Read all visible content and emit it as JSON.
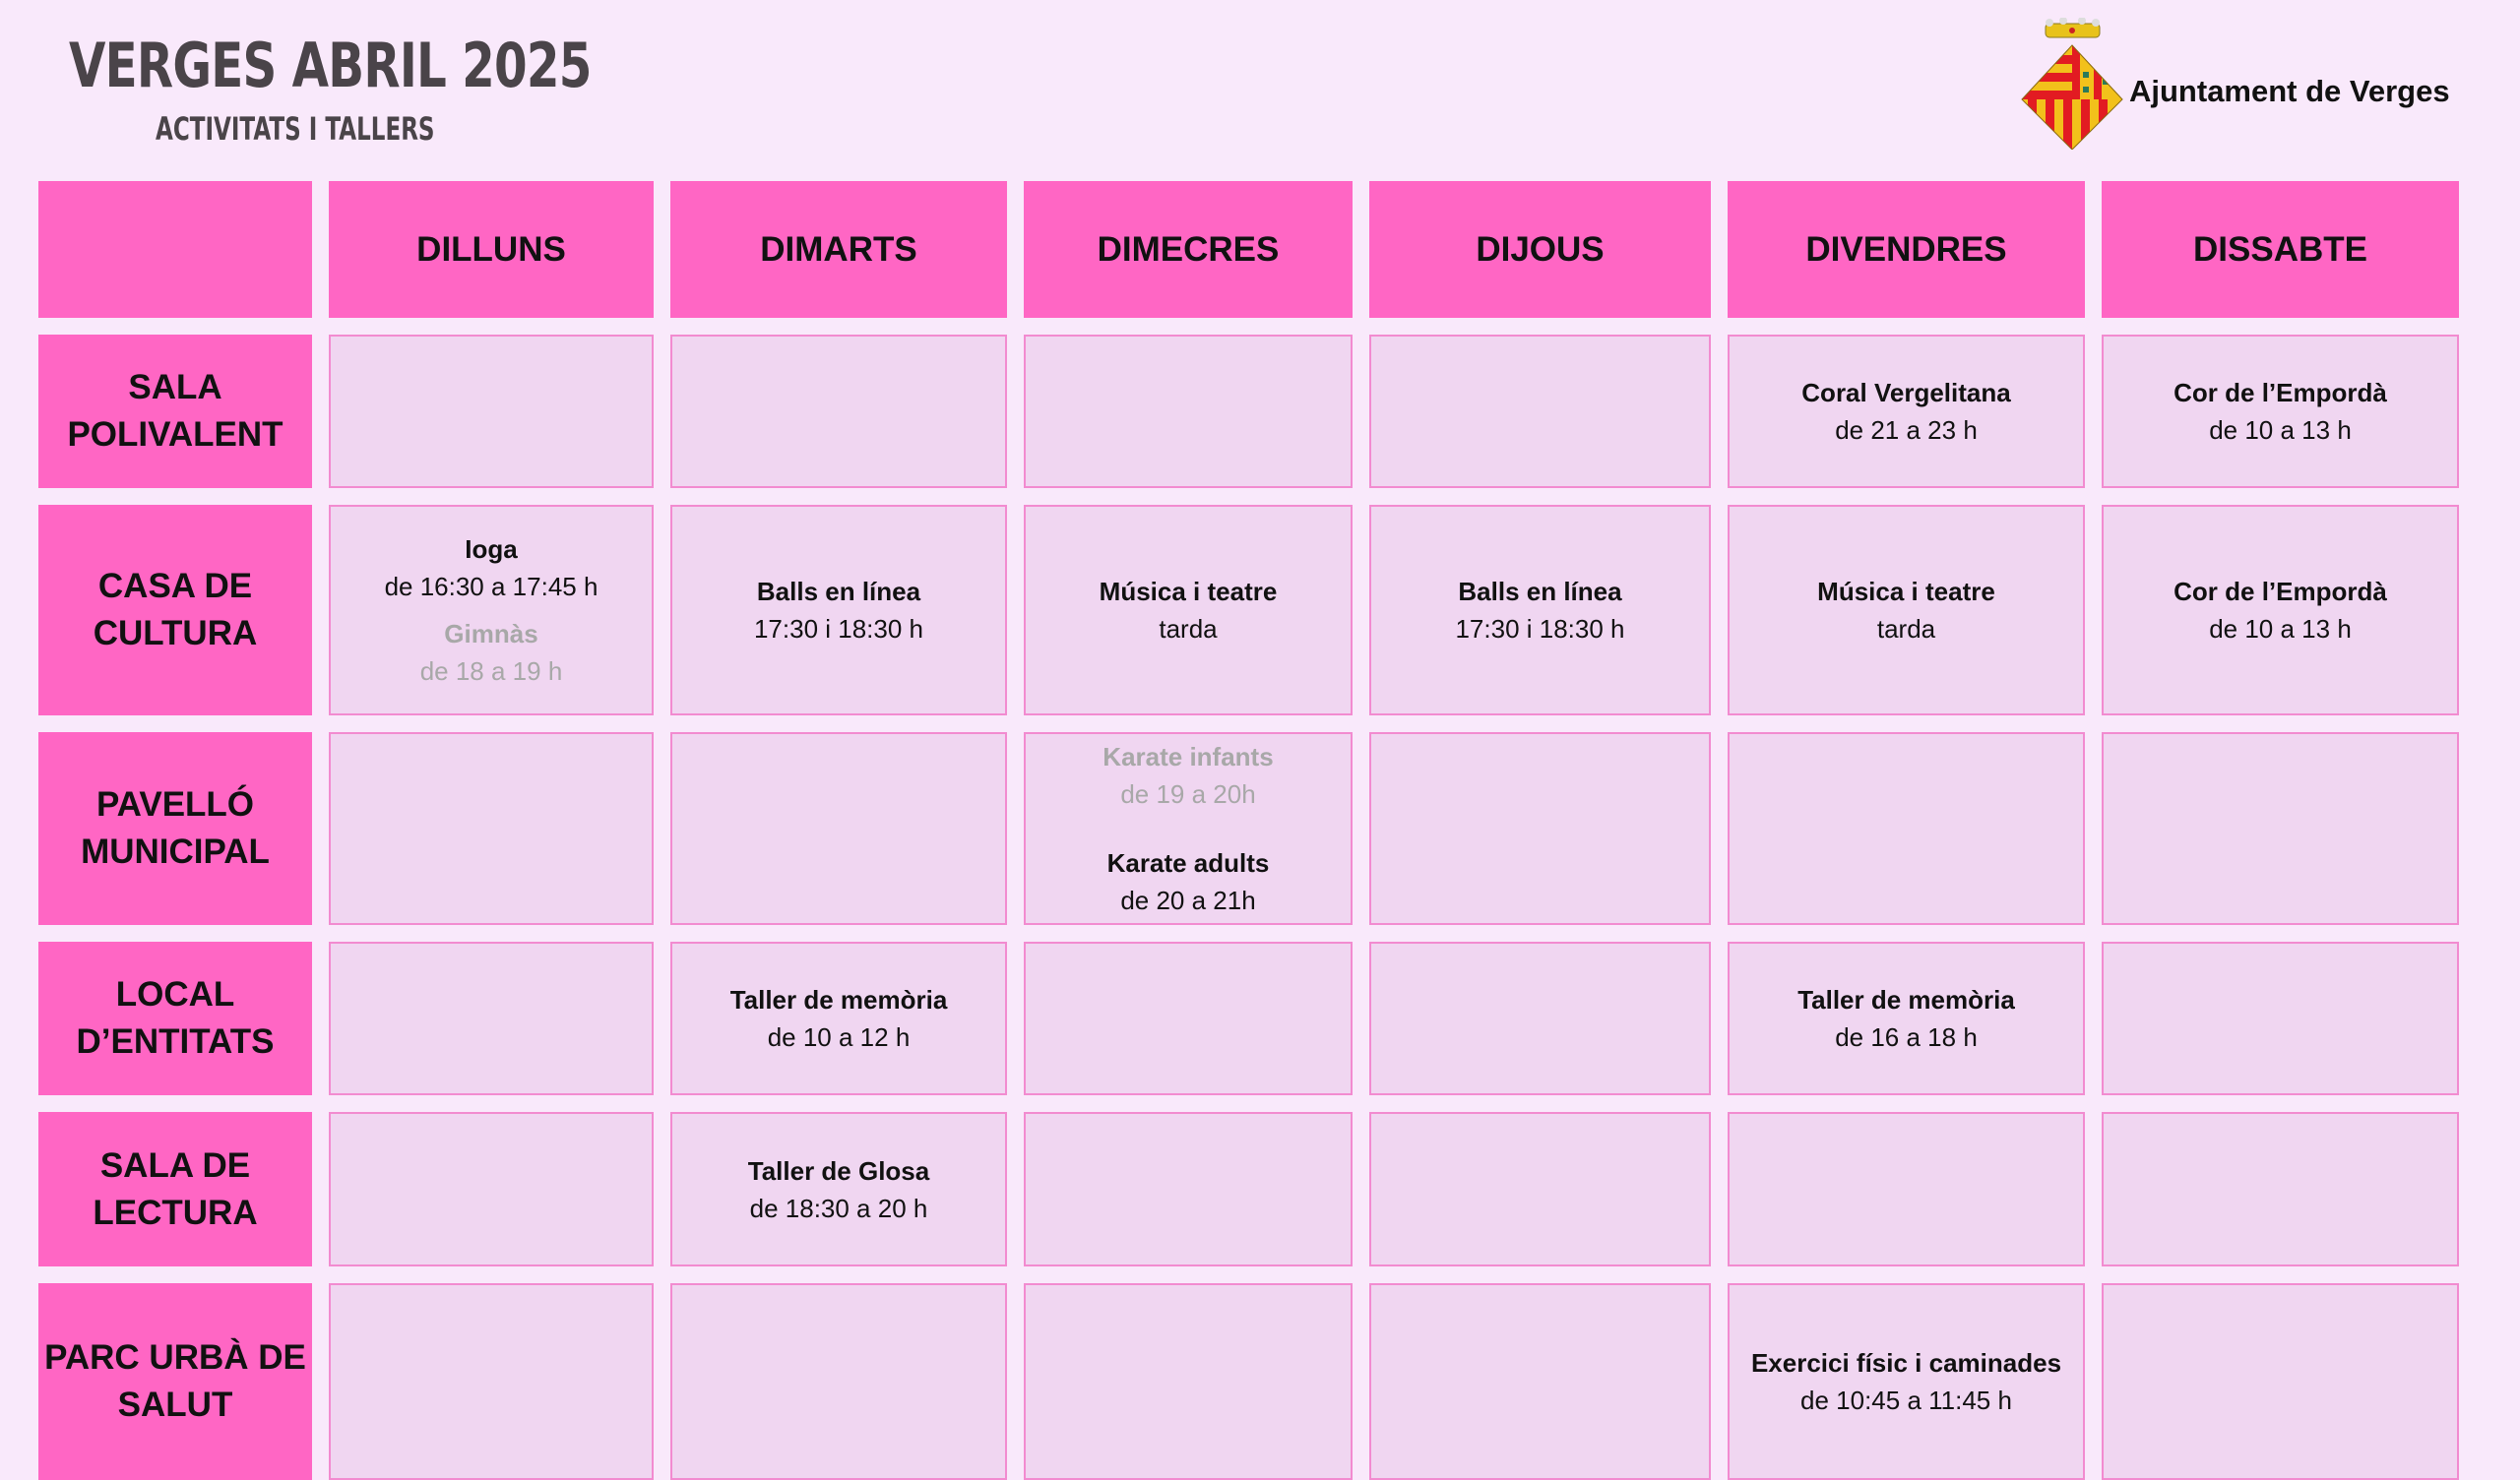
{
  "header": {
    "title": "VERGES ABRIL 2025",
    "subtitle": "ACTIVITATS I TALLERS",
    "logo_text": "Ajuntament de Verges"
  },
  "colors": {
    "background": "#f9e9fb",
    "header_pink": "#ff66c4",
    "cell": "#f0d6f1",
    "cell_border": "#f28bd0",
    "muted_text": "#a8a8a8"
  },
  "days": [
    "DILLUNS",
    "DIMARTS",
    "DIMECRES",
    "DIJOUS",
    "DIVENDRES",
    "DISSABTE"
  ],
  "rows": [
    {
      "place": "SALA POLIVALENT",
      "cells": [
        [],
        [],
        [],
        [],
        [
          {
            "name": "Coral Vergelitana",
            "time": "de 21 a 23 h"
          }
        ],
        [
          {
            "name": "Cor de l’Empordà",
            "time": "de 10 a 13 h"
          }
        ]
      ]
    },
    {
      "place": "CASA DE CULTURA",
      "cells": [
        [
          {
            "name": "Ioga",
            "time": "de 16:30 a 17:45 h"
          },
          {
            "name": "Gimnàs",
            "time": "de 18 a 19 h",
            "muted": true
          }
        ],
        [
          {
            "name": "Balls en línea",
            "time": "17:30 i 18:30 h"
          }
        ],
        [
          {
            "name": "Música i teatre",
            "time": "tarda"
          }
        ],
        [
          {
            "name": "Balls en línea",
            "time": "17:30 i 18:30 h"
          }
        ],
        [
          {
            "name": "Música i teatre",
            "time": "tarda"
          }
        ],
        [
          {
            "name": "Cor de l’Empordà",
            "time": "de 10 a 13 h"
          }
        ]
      ]
    },
    {
      "place": "PAVELLÓ MUNICIPAL",
      "cells": [
        [],
        [],
        [
          {
            "name": "Karate infants",
            "time": "de 19 a 20h",
            "muted": true
          },
          {
            "name": "Karate adults",
            "time": "de 20 a 21h"
          }
        ],
        [],
        [],
        []
      ]
    },
    {
      "place": "LOCAL D’ENTITATS",
      "cells": [
        [],
        [
          {
            "name": "Taller de memòria",
            "time": "de 10 a 12 h"
          }
        ],
        [],
        [],
        [
          {
            "name": "Taller de memòria",
            "time": "de 16 a 18 h"
          }
        ],
        []
      ]
    },
    {
      "place": "SALA DE LECTURA",
      "cells": [
        [],
        [
          {
            "name": "Taller de Glosa",
            "time": "de 18:30 a 20 h"
          }
        ],
        [],
        [],
        [],
        []
      ]
    },
    {
      "place": "PARC URBÀ DE SALUT",
      "cells": [
        [],
        [],
        [],
        [],
        [
          {
            "name": "Exercici físic i caminades",
            "time": "de 10:45 a 11:45 h"
          }
        ],
        []
      ]
    }
  ]
}
